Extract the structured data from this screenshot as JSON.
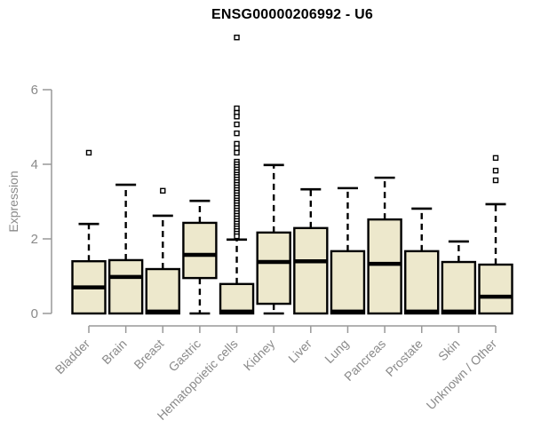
{
  "chart_data": {
    "type": "boxplot",
    "title": "ENSG00000206992 - U6",
    "ylabel": "Expression",
    "xlabel": "",
    "ylim": [
      0,
      6
    ],
    "yticks": [
      0,
      2,
      4,
      6
    ],
    "grid": false,
    "legend": false,
    "categories": [
      "Bladder",
      "Brain",
      "Breast",
      "Gastric",
      "Hematopoietic cells",
      "Kidney",
      "Liver",
      "Lung",
      "Pancreas",
      "Prostate",
      "Skin",
      "Unknown / Other"
    ],
    "series": [
      {
        "name": "Bladder",
        "whisker_low": 0,
        "q1": 0,
        "median": 0.7,
        "q3": 1.4,
        "whisker_high": 2.4,
        "outliers": [
          4.31
        ]
      },
      {
        "name": "Brain",
        "whisker_low": 0,
        "q1": 0,
        "median": 0.98,
        "q3": 1.43,
        "whisker_high": 3.45,
        "outliers": []
      },
      {
        "name": "Breast",
        "whisker_low": 0,
        "q1": 0,
        "median": 0.05,
        "q3": 1.19,
        "whisker_high": 2.62,
        "outliers": [
          3.29
        ]
      },
      {
        "name": "Gastric",
        "whisker_low": 0,
        "q1": 0.95,
        "median": 1.57,
        "q3": 2.43,
        "whisker_high": 3.02,
        "outliers": []
      },
      {
        "name": "Hematopoietic cells",
        "whisker_low": 0,
        "q1": 0,
        "median": 0.05,
        "q3": 0.79,
        "whisker_high": 1.98,
        "outliers": [
          7.4,
          5.5,
          5.38,
          5.28,
          5.07,
          4.83,
          4.55,
          4.43,
          4.31,
          4.07,
          4.0,
          3.93,
          3.86,
          3.79,
          3.72,
          3.66,
          3.59,
          3.52,
          3.45,
          3.38,
          3.31,
          3.24,
          3.17,
          3.1,
          3.03,
          2.97,
          2.9,
          2.83,
          2.76,
          2.69,
          2.62,
          2.55,
          2.48,
          2.41,
          2.34,
          2.28,
          2.21,
          2.14,
          2.07
        ]
      },
      {
        "name": "Kidney",
        "whisker_low": 0,
        "q1": 0.26,
        "median": 1.38,
        "q3": 2.17,
        "whisker_high": 3.98,
        "outliers": []
      },
      {
        "name": "Liver",
        "whisker_low": 0,
        "q1": 0,
        "median": 1.4,
        "q3": 2.29,
        "whisker_high": 3.33,
        "outliers": []
      },
      {
        "name": "Lung",
        "whisker_low": 0,
        "q1": 0,
        "median": 0.05,
        "q3": 1.67,
        "whisker_high": 3.36,
        "outliers": []
      },
      {
        "name": "Pancreas",
        "whisker_low": 0,
        "q1": 0,
        "median": 1.33,
        "q3": 2.52,
        "whisker_high": 3.64,
        "outliers": []
      },
      {
        "name": "Prostate",
        "whisker_low": 0,
        "q1": 0,
        "median": 0.05,
        "q3": 1.67,
        "whisker_high": 2.81,
        "outliers": []
      },
      {
        "name": "Skin",
        "whisker_low": 0,
        "q1": 0,
        "median": 0.05,
        "q3": 1.38,
        "whisker_high": 1.93,
        "outliers": []
      },
      {
        "name": "Unknown / Other",
        "whisker_low": 0,
        "q1": 0,
        "median": 0.45,
        "q3": 1.31,
        "whisker_high": 2.93,
        "outliers": [
          4.17,
          3.83,
          3.57
        ]
      }
    ],
    "style": {
      "box_fill": "#EDE8CC",
      "box_stroke": "#000000",
      "median_color": "#000000",
      "whisker_color": "#000000",
      "outlier_fill": "#ffffff",
      "axis_color": "#999999",
      "label_color": "#8a8a8a",
      "title_color": "#000000",
      "background": "#ffffff"
    }
  }
}
